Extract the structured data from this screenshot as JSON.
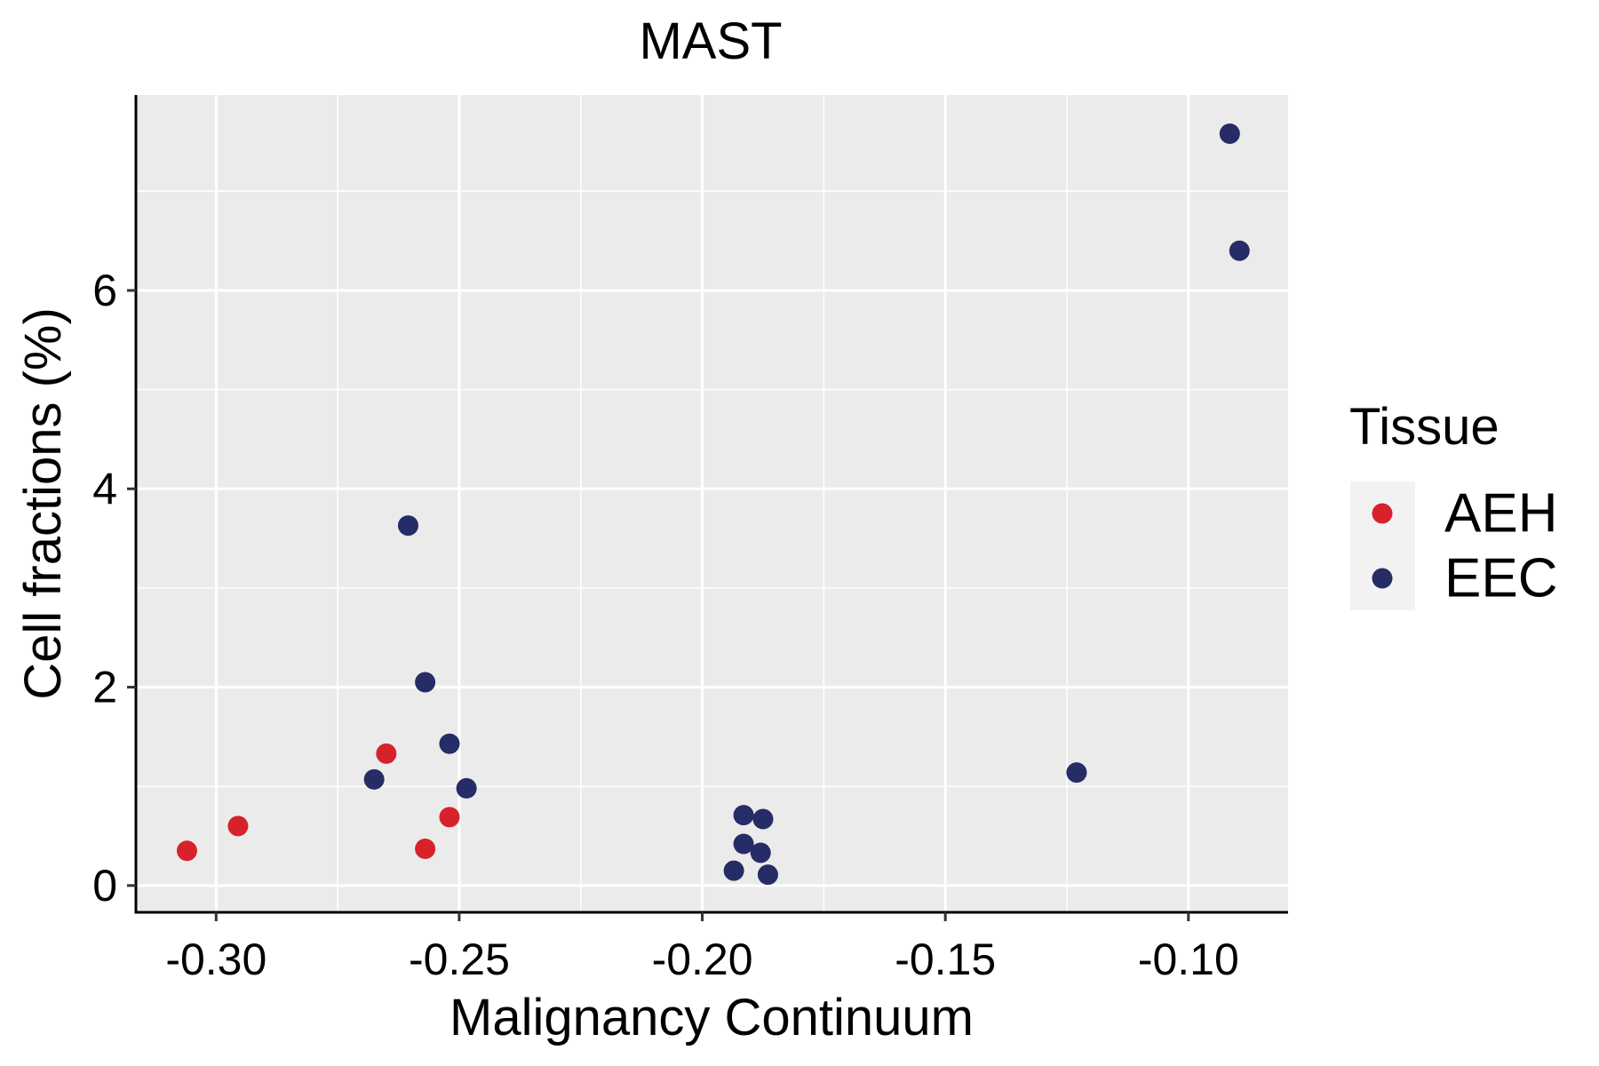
{
  "chart_data": {
    "type": "scatter",
    "title": "MAST",
    "xlabel": "Malignancy Continuum",
    "ylabel": "Cell fractions (%)",
    "xlim": [
      -0.3165,
      -0.0795
    ],
    "ylim": [
      -0.27,
      7.97
    ],
    "x_ticks": [
      -0.3,
      -0.25,
      -0.2,
      -0.15,
      -0.1
    ],
    "x_tick_labels": [
      "-0.30",
      "-0.25",
      "-0.20",
      "-0.15",
      "-0.10"
    ],
    "y_ticks": [
      0,
      2,
      4,
      6
    ],
    "y_tick_labels": [
      "0",
      "2",
      "4",
      "6"
    ],
    "grid": true,
    "legend_position": "right",
    "legend_title": "Tissue",
    "series": [
      {
        "name": "AEH",
        "color": "#d7222b",
        "x": [
          -0.306,
          -0.2955,
          -0.265,
          -0.252,
          -0.257
        ],
        "y": [
          0.35,
          0.6,
          1.33,
          0.69,
          0.37
        ]
      },
      {
        "name": "EEC",
        "color": "#262c66",
        "x": [
          -0.2605,
          -0.257,
          -0.252,
          -0.2675,
          -0.2485,
          -0.1915,
          -0.1875,
          -0.1915,
          -0.188,
          -0.1935,
          -0.1865,
          -0.123,
          -0.0915,
          -0.0895
        ],
        "y": [
          3.63,
          2.05,
          1.43,
          1.07,
          0.98,
          0.71,
          0.67,
          0.42,
          0.33,
          0.15,
          0.11,
          1.14,
          7.58,
          6.4
        ]
      }
    ]
  }
}
